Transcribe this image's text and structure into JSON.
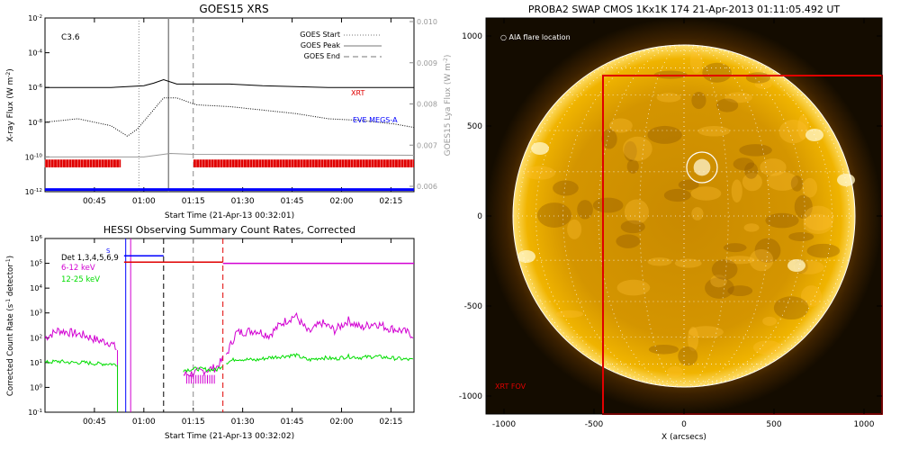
{
  "chart_data": [
    {
      "type": "line",
      "title": "GOES15 XRS",
      "xlabel": "Start Time (21-Apr-13 00:32:01)",
      "ylabel": "X-ray Flux (W m^-2)",
      "y2label": "GOES15 Lya Flux (W m^-2)",
      "annotation": "C3.6",
      "xlim": [
        30,
        142
      ],
      "ylim_log": [
        -12,
        -2
      ],
      "y2lim": [
        0.006,
        0.01
      ],
      "y2ticks": [
        "0.006",
        "0.007",
        "0.008",
        "0.009",
        "0.010"
      ],
      "xticks": [
        "00:45",
        "01:00",
        "01:15",
        "01:30",
        "01:45",
        "02:00",
        "02:15"
      ],
      "yticks": [
        "10^-12",
        "10^-10",
        "10^-8",
        "10^-6",
        "10^-4",
        "10^-2"
      ],
      "legend_placement": "top-right",
      "legend": [
        {
          "label": "GOES Start",
          "style": "dotted"
        },
        {
          "label": "GOES Peak",
          "style": "solid"
        },
        {
          "label": "GOES End",
          "style": "dashed"
        }
      ],
      "markers": {
        "start": 58.5,
        "peak": 67.5,
        "end": 75
      },
      "series": [
        {
          "name": "XRT",
          "color": "#e00000",
          "x": [
            30,
            38,
            45,
            50,
            55,
            60,
            63,
            66,
            70,
            76,
            86,
            96,
            106,
            116,
            122,
            128,
            134,
            140,
            142
          ],
          "values": [
            -6.0,
            -6.0,
            -6.0,
            -6.0,
            -5.95,
            -5.9,
            -5.75,
            -5.55,
            -5.8,
            -5.8,
            -5.8,
            -5.9,
            -5.95,
            -6.0,
            -6.0,
            -6.0,
            -6.0,
            -6.0,
            -6.0
          ]
        },
        {
          "name": "EVE MEGS-A",
          "color": "#0000ff",
          "x": [
            30,
            40,
            50,
            55,
            58,
            62,
            66,
            70,
            76,
            86,
            96,
            106,
            116,
            126,
            136,
            142
          ],
          "values": [
            -8.0,
            -7.8,
            -8.2,
            -8.8,
            -8.4,
            -7.5,
            -6.6,
            -6.6,
            -7.0,
            -7.1,
            -7.3,
            -7.5,
            -7.8,
            -7.9,
            -8.1,
            -8.3
          ]
        },
        {
          "name": "Lya",
          "color": "#999999",
          "x": [
            30,
            60,
            68,
            75,
            142
          ],
          "values": [
            -10.0,
            -10.0,
            -9.8,
            -9.85,
            -9.9
          ]
        }
      ],
      "xrt_obs_intervals": [
        [
          30,
          53
        ],
        [
          75,
          142
        ]
      ],
      "labels": {
        "xrt": "XRT",
        "eve": "EVE MEGS-A"
      }
    },
    {
      "type": "line",
      "title": "HESSI Observing Summary Count Rates, Corrected",
      "xlabel": "Start Time (21-Apr-13 00:32:02)",
      "ylabel": "Corrected Count Rate (s^-1 detector^-1)",
      "xlim": [
        30,
        142
      ],
      "ylim_log": [
        -1,
        6
      ],
      "xticks": [
        "00:45",
        "01:00",
        "01:15",
        "01:30",
        "01:45",
        "02:00",
        "02:15"
      ],
      "yticks": [
        "10^-1",
        "10^0",
        "10^1",
        "10^2",
        "10^3",
        "10^4",
        "10^5",
        "10^6"
      ],
      "legend": [
        {
          "label": "Det 1,3,4,5,6,9",
          "color": "#000000"
        },
        {
          "label": "6-12 keV",
          "color": "#d200d2"
        },
        {
          "label": "12-25 keV",
          "color": "#00dd00"
        }
      ],
      "s_label": "S",
      "series": [
        {
          "name": "6-12 keV",
          "color": "#d200d2",
          "x": [
            30,
            34,
            38,
            42,
            46,
            50,
            52,
            72,
            76,
            82,
            85,
            88,
            94,
            98,
            102,
            106,
            110,
            114,
            118,
            122,
            126,
            130,
            134,
            138,
            142
          ],
          "values": [
            2.0,
            2.3,
            2.2,
            2.1,
            1.9,
            1.8,
            1.5,
            0.5,
            0.6,
            0.8,
            1.3,
            2.2,
            2.3,
            2.1,
            2.6,
            2.9,
            2.2,
            2.6,
            2.3,
            2.7,
            2.4,
            2.6,
            2.4,
            2.3,
            2.1
          ]
        },
        {
          "name": "12-25 keV",
          "color": "#00dd00",
          "x": [
            30,
            34,
            38,
            42,
            46,
            50,
            52,
            72,
            76,
            82,
            85,
            88,
            94,
            98,
            102,
            106,
            110,
            114,
            118,
            122,
            126,
            130,
            134,
            138,
            142
          ],
          "values": [
            1.0,
            1.05,
            1.0,
            1.0,
            0.95,
            0.95,
            0.9,
            0.7,
            0.75,
            0.7,
            1.0,
            1.15,
            1.1,
            1.2,
            1.25,
            1.3,
            1.1,
            1.2,
            1.15,
            1.25,
            1.2,
            1.25,
            1.2,
            1.15,
            1.1
          ]
        }
      ],
      "attenuator_level": 5.3,
      "det_level_upper": 5.05,
      "det_level": 5.0,
      "vlines": [
        {
          "x": 54.5,
          "color": "#0000ff",
          "style": "solid"
        },
        {
          "x": 56,
          "color": "#d200d2",
          "style": "solid"
        },
        {
          "x": 66,
          "color": "#000000",
          "style": "dashed"
        },
        {
          "x": 75,
          "color": "#888888",
          "style": "dashed"
        },
        {
          "x": 84,
          "color": "#e00000",
          "style": "dashed"
        }
      ]
    },
    {
      "type": "image",
      "title": "PROBA2 SWAP CMOS 1Kx1K 174 21-Apr-2013 01:11:05.492 UT",
      "xlabel": "X (arcsecs)",
      "xlim": [
        -1100,
        1100
      ],
      "ylim": [
        -1100,
        1100
      ],
      "xticks": [
        -1000,
        -500,
        0,
        500,
        1000
      ],
      "yticks": [
        -1000,
        -500,
        0,
        500,
        1000
      ],
      "flare_label": "AIA flare location",
      "fov_label": "XRT FOV",
      "fov_box": {
        "x0": -450,
        "x1": 1100,
        "y0": -1100,
        "y1": 780
      },
      "flare": {
        "x": 100,
        "y": 270,
        "r": 85
      },
      "sun_radius": 950
    }
  ]
}
